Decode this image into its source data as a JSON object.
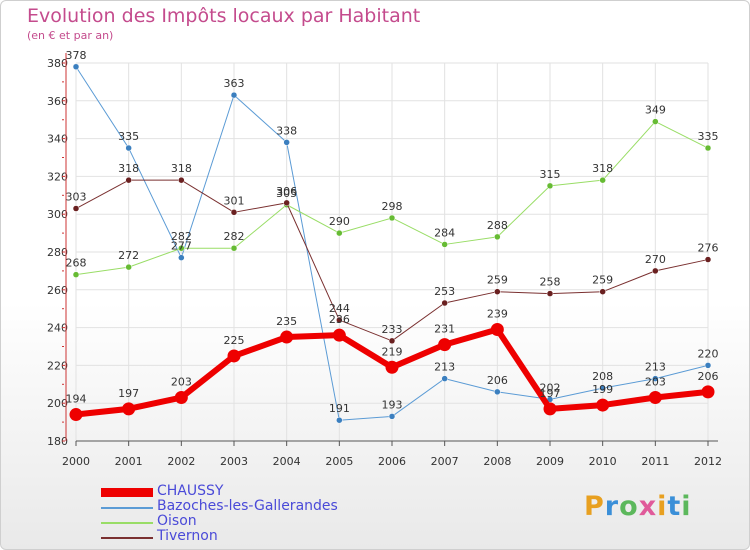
{
  "header": {
    "title": "Evolution des Impôts locaux par Habitant",
    "subtitle": "(en € et par an)"
  },
  "logo": {
    "text": "Proxiti",
    "colors": [
      "#e8a020",
      "#3a8fd8",
      "#5cb85c",
      "#e05a9a",
      "#e8a020",
      "#3a8fd8",
      "#5cb85c"
    ]
  },
  "chart_data": {
    "type": "line",
    "title": "Evolution des Impôts locaux par Habitant",
    "subtitle": "(en € et par an)",
    "xlabel": "",
    "ylabel": "",
    "ylim": [
      180,
      380
    ],
    "yticks": [
      180,
      200,
      220,
      240,
      260,
      280,
      300,
      320,
      340,
      360,
      380
    ],
    "x": [
      "2000",
      "2001",
      "2002",
      "2003",
      "2004",
      "2005",
      "2006",
      "2007",
      "2008",
      "2009",
      "2010",
      "2011",
      "2012"
    ],
    "series": [
      {
        "name": "Bazoches-les-Gallerandes",
        "color": "#5b9bd5",
        "width": 1,
        "marker_color": "#3b7fbf",
        "values": [
          378,
          335,
          277,
          363,
          338,
          191,
          193,
          213,
          206,
          202,
          208,
          213,
          220
        ],
        "labels": [
          "378",
          "335",
          "277",
          "363",
          "338",
          "191",
          "193",
          "213",
          "206",
          "202",
          "208",
          "213",
          "220"
        ]
      },
      {
        "name": "Oison",
        "color": "#99dd66",
        "width": 1,
        "marker_color": "#66bb33",
        "values": [
          268,
          272,
          282,
          282,
          305,
          290,
          298,
          284,
          288,
          315,
          318,
          349,
          335
        ],
        "labels": [
          "268",
          "272",
          "282",
          "282",
          "305",
          "290",
          "298",
          "284",
          "288",
          "315",
          "318",
          "349",
          "335"
        ]
      },
      {
        "name": "Tivernon",
        "color": "#7a3030",
        "width": 1,
        "marker_color": "#6a2020",
        "values": [
          303,
          318,
          318,
          301,
          306,
          244,
          233,
          253,
          259,
          258,
          259,
          270,
          276
        ],
        "labels": [
          "303",
          "318",
          "318",
          "301",
          "306",
          "244",
          "233",
          "253",
          "259",
          "258",
          "259",
          "270",
          "276"
        ]
      },
      {
        "name": "CHAUSSY",
        "color": "#ee0000",
        "width": 6,
        "marker_color": "#ee0000",
        "values": [
          194,
          197,
          203,
          225,
          235,
          236,
          219,
          231,
          239,
          197,
          199,
          203,
          206
        ],
        "labels": [
          "194",
          "197",
          "203",
          "225",
          "235",
          "236",
          "219",
          "231",
          "239",
          "197",
          "199",
          "203",
          "206"
        ]
      }
    ],
    "legend": [
      "CHAUSSY",
      "Bazoches-les-Gallerandes",
      "Oison",
      "Tivernon"
    ],
    "legend_position": "bottom-left",
    "grid": true
  }
}
